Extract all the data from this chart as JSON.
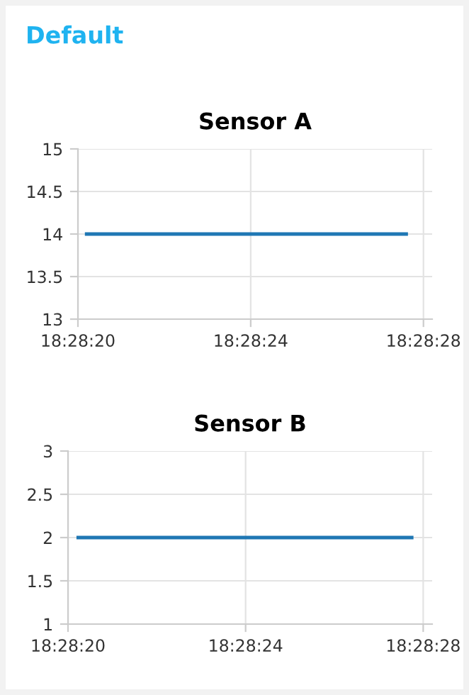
{
  "chart_data": [
    {
      "type": "line",
      "title": "Sensor A",
      "annotations": [
        "Default"
      ],
      "series": [
        {
          "color": "#1f77b4",
          "x": [
            18.472278,
            18.474333
          ],
          "values": [
            14,
            14
          ]
        }
      ],
      "xlim": [
        18.472222,
        18.4745
      ],
      "xticks": [
        {
          "value": 18.472222,
          "label": "18:28:20"
        },
        {
          "value": 18.473333,
          "label": "18:28:24"
        },
        {
          "value": 18.474444,
          "label": "18:28:28"
        }
      ],
      "ylim": [
        13,
        15
      ],
      "yticks": [
        13,
        13.5,
        14,
        14.5,
        15
      ],
      "grid": true
    },
    {
      "type": "line",
      "title": "Sensor B",
      "series": [
        {
          "color": "#1f77b4",
          "x": [
            18.472286,
            18.474372
          ],
          "values": [
            2,
            2
          ]
        }
      ],
      "xlim": [
        18.472222,
        18.4745
      ],
      "xticks": [
        {
          "value": 18.472222,
          "label": "18:28:20"
        },
        {
          "value": 18.473333,
          "label": "18:28:24"
        },
        {
          "value": 18.474444,
          "label": "18:28:28"
        }
      ],
      "ylim": [
        1,
        3
      ],
      "yticks": [
        1,
        1.5,
        2,
        2.5,
        3
      ],
      "grid": true
    }
  ]
}
